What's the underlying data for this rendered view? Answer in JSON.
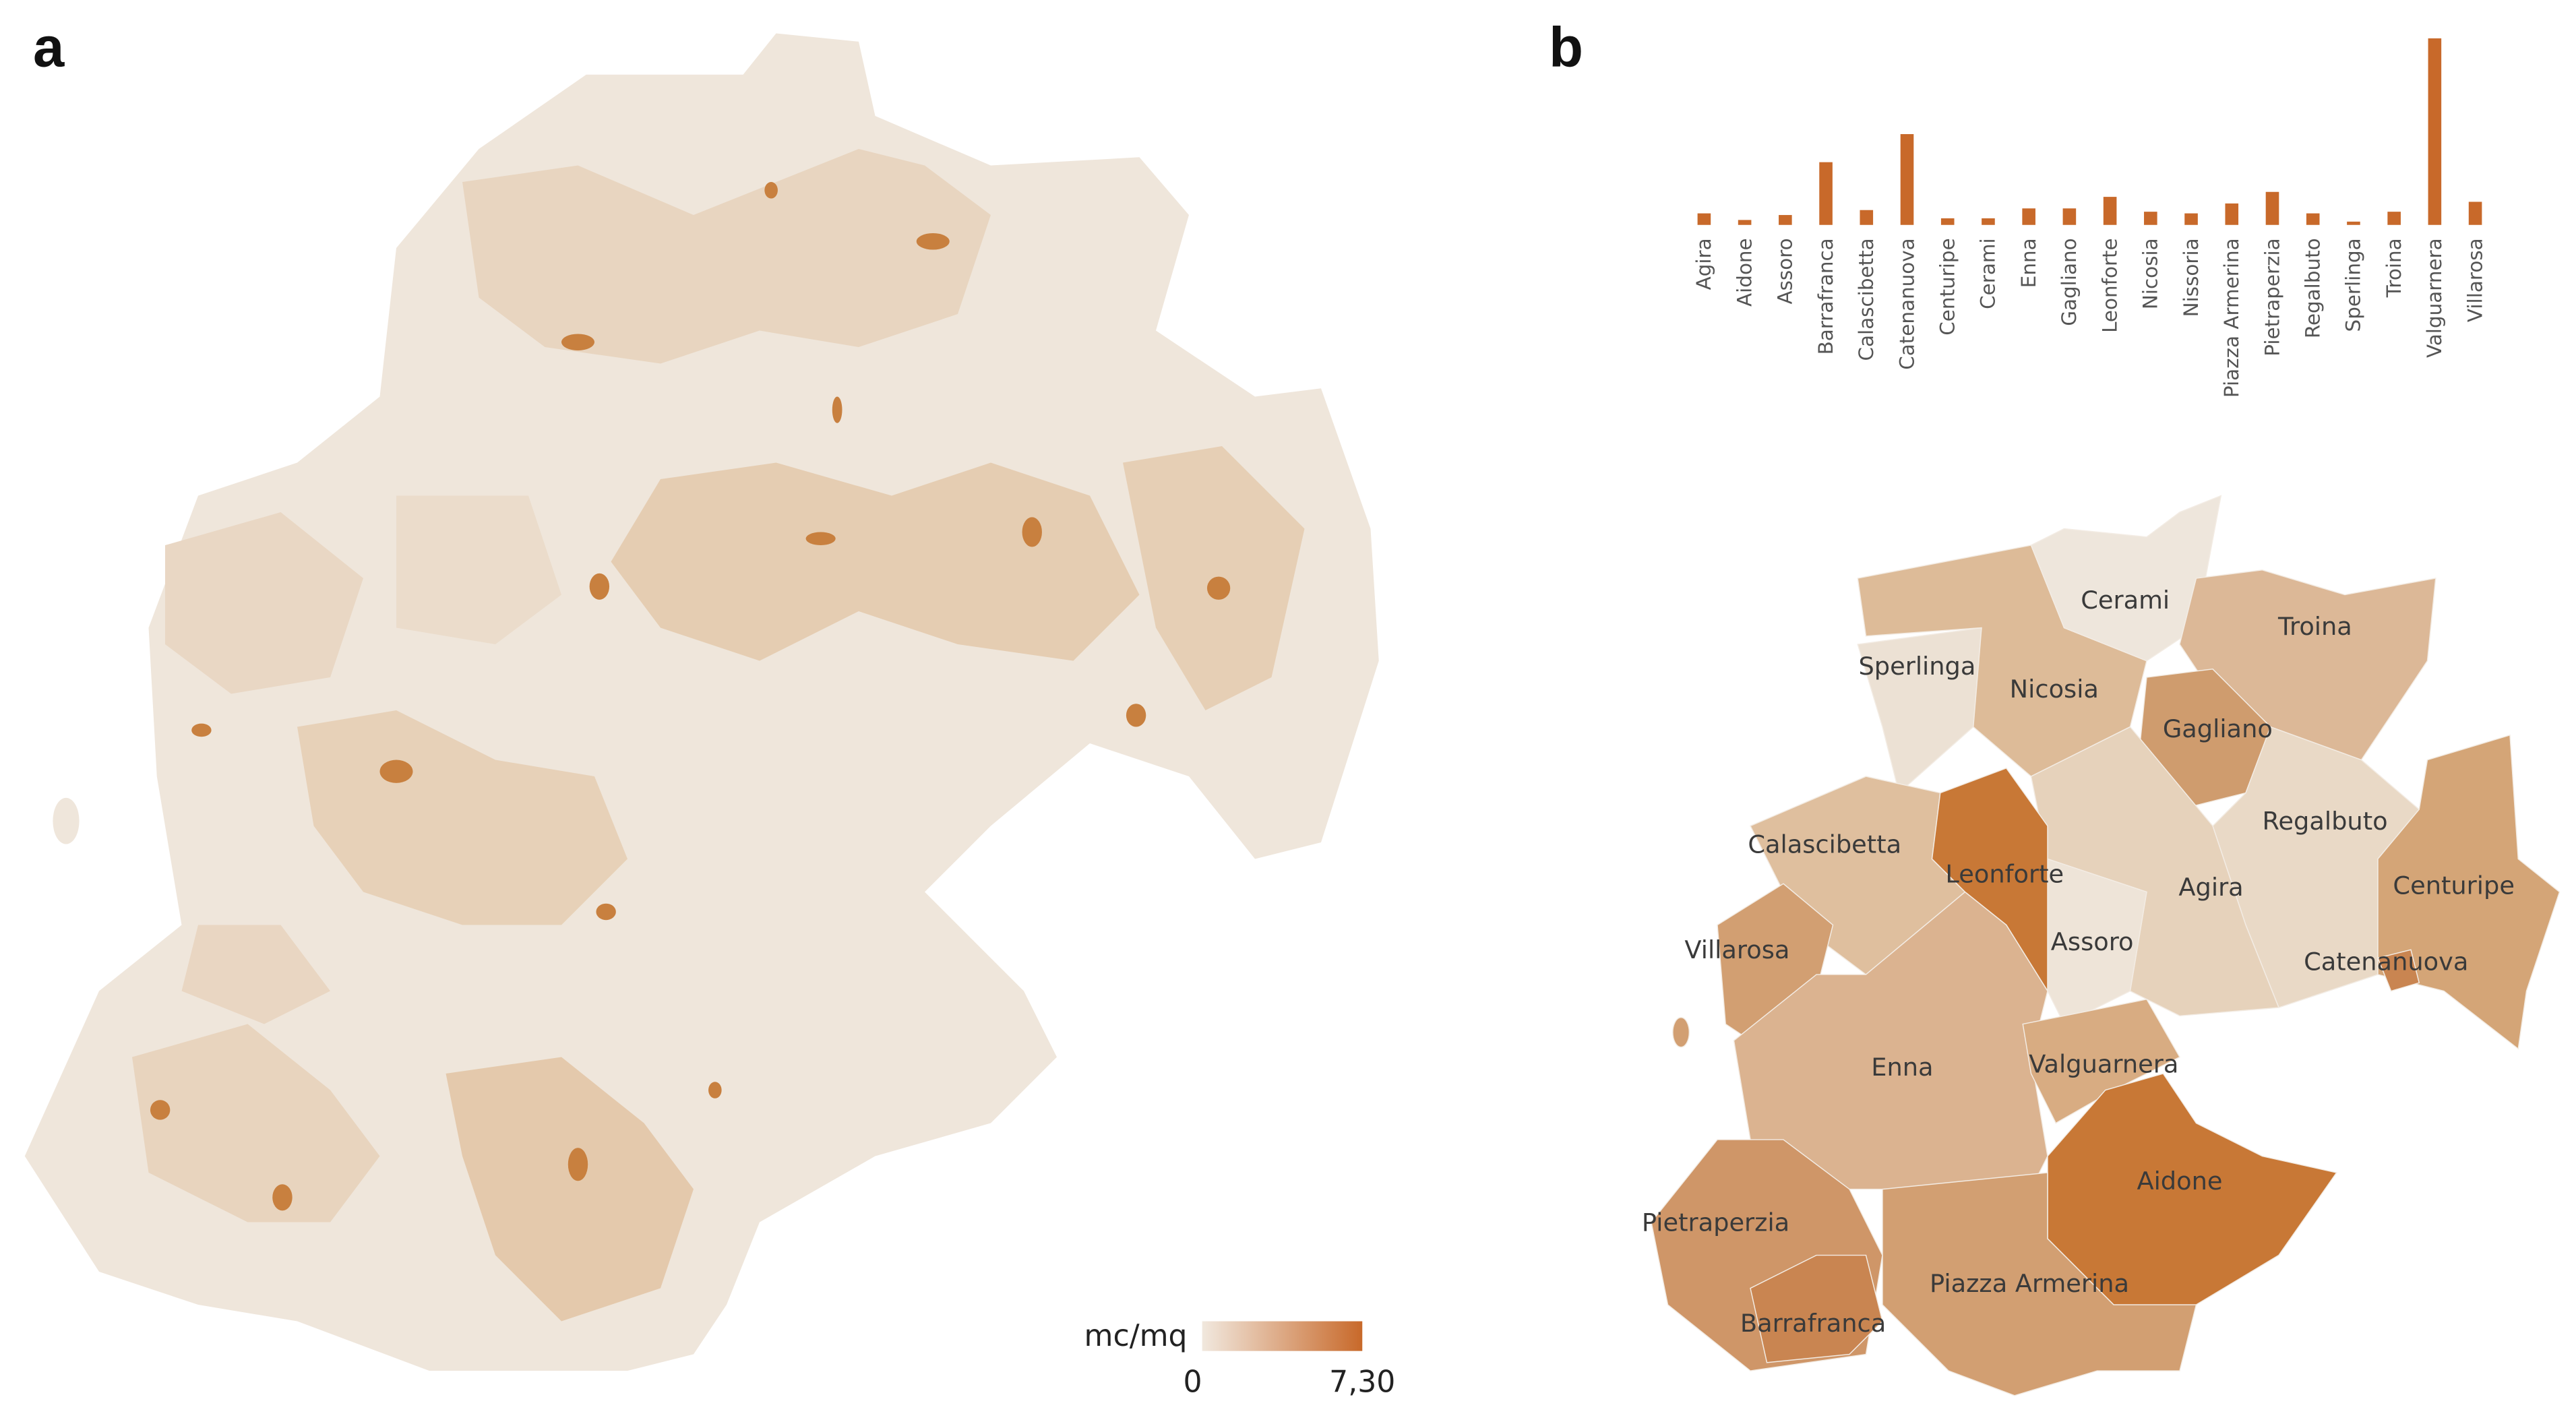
{
  "panel_labels": [
    "a",
    "b"
  ],
  "legend": {
    "title": "mc/mq",
    "ticks": [
      0,
      {
        "value": 7.3,
        "label": "7,30"
      }
    ]
  },
  "chart_data": {
    "type": "bar",
    "categories": [
      "Agira",
      "Aidone",
      "Assoro",
      "Barrafranca",
      "Calascibetta",
      "Catenanuova",
      "Centuripe",
      "Cerami",
      "Enna",
      "Gagliano",
      "Leonforte",
      "Nicosia",
      "Nissoria",
      "Piazza Armerina",
      "Pietraperzia",
      "Regalbuto",
      "Sperlinga",
      "Troina",
      "Valguarnera",
      "Villarosa"
    ],
    "values": [
      7,
      3,
      6,
      38,
      9,
      55,
      4,
      4,
      10,
      10,
      17,
      8,
      7,
      13,
      20,
      7,
      2,
      8,
      113,
      14
    ],
    "color": "#c8692a"
  },
  "map_labels": [
    "Cerami",
    "Troina",
    "Sperlinga",
    "Nicosia",
    "Gagliano",
    "Regalbuto",
    "Calascibetta",
    "Leonforte",
    "Agira",
    "Centuripe",
    "Assoro",
    "Villarosa",
    "Catenanuova",
    "Enna",
    "Valguarnera",
    "Aidone",
    "Pietraperzia",
    "Piazza Armerina",
    "Barrafranca"
  ]
}
